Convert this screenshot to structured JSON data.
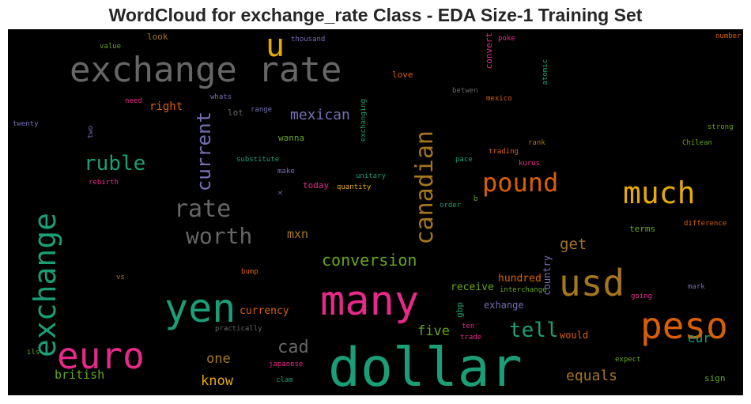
{
  "title": "WordCloud for exchange_rate Class - EDA Size-1 Training Set",
  "chart_data": {
    "type": "wordcloud",
    "title": "WordCloud for exchange_rate Class - EDA Size-1 Training Set",
    "background": "#000000",
    "colormap": "Dark2",
    "words": [
      {
        "text": "dollar",
        "color": "#1b9e77"
      },
      {
        "text": "exchange rate",
        "color": "#666666"
      },
      {
        "text": "many",
        "color": "#e7298a"
      },
      {
        "text": "peso",
        "color": "#d95f02"
      },
      {
        "text": "yen",
        "color": "#1b9e77"
      },
      {
        "text": "euro",
        "color": "#e7298a"
      },
      {
        "text": "usd",
        "color": "#a6761d"
      },
      {
        "text": "exchange",
        "color": "#1b9e77"
      },
      {
        "text": "much",
        "color": "#e6ab02"
      },
      {
        "text": "u",
        "color": "#e6ab02"
      },
      {
        "text": "canadian",
        "color": "#a6761d"
      },
      {
        "text": "pound",
        "color": "#d95f02"
      },
      {
        "text": "rate",
        "color": "#666666"
      },
      {
        "text": "worth",
        "color": "#666666"
      },
      {
        "text": "ruble",
        "color": "#1b9e77"
      },
      {
        "text": "current",
        "color": "#7570b3"
      },
      {
        "text": "tell",
        "color": "#1b9e77"
      },
      {
        "text": "cad",
        "color": "#666666"
      },
      {
        "text": "conversion",
        "color": "#66a61e"
      },
      {
        "text": "mexican",
        "color": "#7570b3"
      },
      {
        "text": "get",
        "color": "#a6761d"
      },
      {
        "text": "one",
        "color": "#a6761d"
      },
      {
        "text": "know",
        "color": "#e6ab02"
      },
      {
        "text": "equals",
        "color": "#a6761d"
      },
      {
        "text": "five",
        "color": "#66a61e"
      },
      {
        "text": "mxn",
        "color": "#a6761d"
      },
      {
        "text": "right",
        "color": "#d95f02"
      },
      {
        "text": "british",
        "color": "#66a61e"
      },
      {
        "text": "eur",
        "color": "#1b9e77"
      },
      {
        "text": "currency",
        "color": "#d95f02"
      },
      {
        "text": "receive",
        "color": "#66a61e"
      },
      {
        "text": "hundred",
        "color": "#d95f02"
      },
      {
        "text": "exhange",
        "color": "#7570b3"
      },
      {
        "text": "would",
        "color": "#d95f02"
      },
      {
        "text": "country",
        "color": "#7570b3"
      },
      {
        "text": "gbp",
        "color": "#1b9e77"
      },
      {
        "text": "today",
        "color": "#e7298a"
      },
      {
        "text": "wanna",
        "color": "#66a61e"
      },
      {
        "text": "love",
        "color": "#d95f02"
      },
      {
        "text": "look",
        "color": "#a6761d"
      },
      {
        "text": "convert",
        "color": "#e7298a"
      },
      {
        "text": "lot",
        "color": "#666666"
      },
      {
        "text": "terms",
        "color": "#66a61e"
      },
      {
        "text": "sign",
        "color": "#66a61e"
      },
      {
        "text": "thousand",
        "color": "#7570b3"
      },
      {
        "text": "poke",
        "color": "#e7298a"
      },
      {
        "text": "number",
        "color": "#d95f02"
      },
      {
        "text": "value",
        "color": "#66a61e"
      },
      {
        "text": "atomic",
        "color": "#1b9e77"
      },
      {
        "text": "need",
        "color": "#e7298a"
      },
      {
        "text": "whats",
        "color": "#7570b3"
      },
      {
        "text": "betwen",
        "color": "#666666"
      },
      {
        "text": "mexico",
        "color": "#d95f02"
      },
      {
        "text": "exchanging",
        "color": "#1b9e77"
      },
      {
        "text": "range",
        "color": "#7570b3"
      },
      {
        "text": "twenty",
        "color": "#7570b3"
      },
      {
        "text": "two",
        "color": "#7570b3"
      },
      {
        "text": "strong",
        "color": "#66a61e"
      },
      {
        "text": "trading",
        "color": "#d95f02"
      },
      {
        "text": "rank",
        "color": "#a6761d"
      },
      {
        "text": "Chilean",
        "color": "#66a61e"
      },
      {
        "text": "substitute",
        "color": "#1b9e77"
      },
      {
        "text": "pace",
        "color": "#1b9e77"
      },
      {
        "text": "kurus",
        "color": "#e7298a"
      },
      {
        "text": "make",
        "color": "#7570b3"
      },
      {
        "text": "unitary",
        "color": "#1b9e77"
      },
      {
        "text": "rebirth",
        "color": "#e7298a"
      },
      {
        "text": "quantity",
        "color": "#e6ab02"
      },
      {
        "text": "x",
        "color": "#7570b3"
      },
      {
        "text": "b",
        "color": "#66a61e"
      },
      {
        "text": "order",
        "color": "#1b9e77"
      },
      {
        "text": "difference",
        "color": "#d95f02"
      },
      {
        "text": "vs",
        "color": "#a6761d"
      },
      {
        "text": "bump",
        "color": "#d95f02"
      },
      {
        "text": "interchange",
        "color": "#66a61e"
      },
      {
        "text": "mark",
        "color": "#7570b3"
      },
      {
        "text": "going",
        "color": "#e7298a"
      },
      {
        "text": "practically",
        "color": "#666666"
      },
      {
        "text": "ten",
        "color": "#e7298a"
      },
      {
        "text": "trade",
        "color": "#e7298a"
      },
      {
        "text": "ils",
        "color": "#66a61e"
      },
      {
        "text": "japanese",
        "color": "#e7298a"
      },
      {
        "text": "expect",
        "color": "#66a61e"
      },
      {
        "text": "clam",
        "color": "#1b9e77"
      }
    ]
  }
}
